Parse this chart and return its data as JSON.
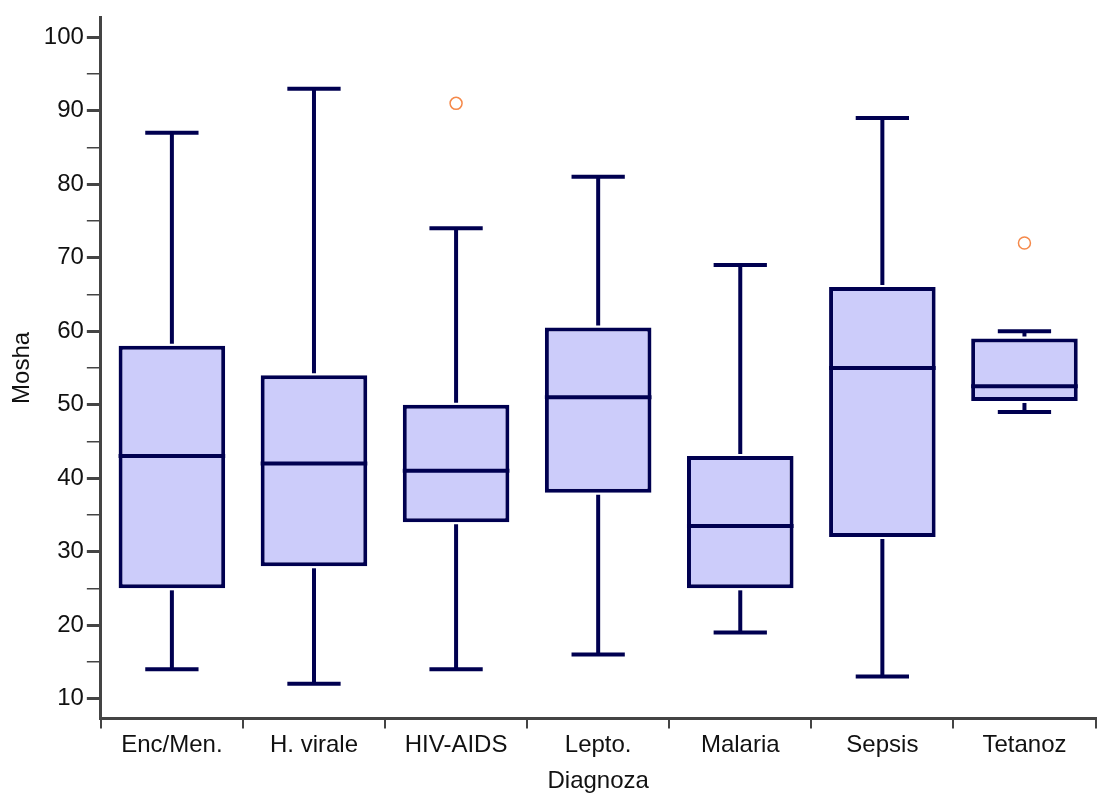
{
  "chart_data": {
    "type": "box",
    "xlabel": "Diagnoza",
    "ylabel": "Mosha",
    "categories": [
      "Enc/Men.",
      "H. virale",
      "HIV-AIDS",
      "Lepto.",
      "Malaria",
      "Sepsis",
      "Tetanoz"
    ],
    "series": [
      {
        "color": "#000050",
        "boxes": [
          {
            "low": 14,
            "q1": 25,
            "median": 43,
            "q3": 58,
            "high": 87
          },
          {
            "low": 12,
            "q1": 28,
            "median": 42,
            "q3": 54,
            "high": 93
          },
          {
            "low": 14,
            "q1": 34,
            "median": 41,
            "q3": 50,
            "high": 74,
            "outliers": [
              91
            ]
          },
          {
            "low": 16,
            "q1": 38,
            "median": 51,
            "q3": 60.5,
            "high": 81
          },
          {
            "low": 19,
            "q1": 25,
            "median": 33.5,
            "q3": 43,
            "high": 69
          },
          {
            "low": 13,
            "q1": 32,
            "median": 55,
            "q3": 66,
            "high": 89
          },
          {
            "low": 49,
            "q1": 50.5,
            "median": 52.5,
            "q3": 59,
            "high": 60,
            "outliers": [
              72
            ]
          }
        ]
      }
    ],
    "ylim": [
      7.3,
      102.7
    ],
    "yticks": [
      10,
      {
        "value": 15,
        "label": null
      },
      20,
      {
        "value": 25,
        "label": null
      },
      30,
      {
        "value": 35,
        "label": null
      },
      40,
      {
        "value": 45,
        "label": null
      },
      50,
      {
        "value": 55,
        "label": null
      },
      60,
      {
        "value": 65,
        "label": null
      },
      70,
      {
        "value": 75,
        "label": null
      },
      80,
      {
        "value": 85,
        "label": null
      },
      90,
      {
        "value": 95,
        "label": null
      },
      100
    ],
    "grid": false,
    "legend": false
  }
}
